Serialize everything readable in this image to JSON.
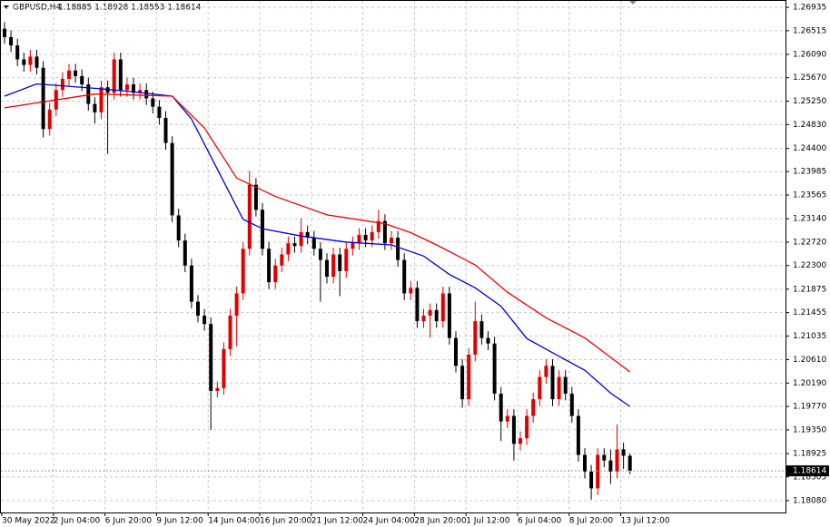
{
  "chart_data": {
    "type": "candlestick",
    "title": "GBPUSD,H4",
    "header_values": "1.18885 1.18928 1.18553 1.18614",
    "categories": [
      "30 May 2022",
      null,
      null,
      null,
      null,
      null,
      null,
      null,
      "2 Jun 04:00",
      null,
      null,
      null,
      null,
      null,
      null,
      null,
      "6 Jun 20:00",
      null,
      null,
      null,
      null,
      null,
      null,
      null,
      "9 Jun 12:00",
      null,
      null,
      null,
      null,
      null,
      null,
      null,
      "14 Jun 04:00",
      null,
      null,
      null,
      null,
      null,
      null,
      null,
      "16 Jun 20:00",
      null,
      null,
      null,
      null,
      null,
      null,
      null,
      "21 Jun 12:00",
      null,
      null,
      null,
      null,
      null,
      null,
      null,
      "24 Jun 04:00",
      null,
      null,
      null,
      null,
      null,
      null,
      null,
      "28 Jun 20:00",
      null,
      null,
      null,
      null,
      null,
      null,
      null,
      "1 Jul 12:00",
      null,
      null,
      null,
      null,
      null,
      null,
      null,
      "6 Jul 04:00",
      null,
      null,
      null,
      null,
      null,
      null,
      null,
      "8 Jul 20:00",
      null,
      null,
      null,
      null,
      null,
      null,
      null,
      "13 Jul 12:00",
      null
    ],
    "open": [
      1.2655,
      1.264,
      1.2625,
      1.26,
      1.259,
      1.2605,
      1.2585,
      1.2475,
      1.251,
      1.2545,
      1.2565,
      1.258,
      1.257,
      1.2555,
      1.252,
      1.2505,
      1.255,
      1.254,
      1.26,
      1.2545,
      1.2555,
      1.254,
      1.2545,
      1.253,
      1.2515,
      1.2495,
      1.245,
      1.232,
      1.2275,
      1.223,
      1.2165,
      1.214,
      1.2125,
      1.2005,
      1.201,
      1.208,
      1.214,
      1.218,
      1.226,
      1.2375,
      1.233,
      1.226,
      1.22,
      1.223,
      1.225,
      1.227,
      1.2265,
      1.229,
      1.228,
      1.226,
      1.224,
      1.221,
      1.225,
      1.222,
      1.226,
      1.227,
      1.2285,
      1.2275,
      1.229,
      1.231,
      1.227,
      1.228,
      1.224,
      1.218,
      1.219,
      1.213,
      1.214,
      1.215,
      1.213,
      1.218,
      1.21,
      1.205,
      1.199,
      1.207,
      1.213,
      1.21,
      1.209,
      1.2,
      1.195,
      1.196,
      1.191,
      1.192,
      1.196,
      1.199,
      1.203,
      1.205,
      1.199,
      1.203,
      1.2,
      1.196,
      1.189,
      1.186,
      1.183,
      1.189,
      1.188,
      1.186,
      1.19,
      1.18885
    ],
    "high": [
      1.2667,
      1.2652,
      1.2637,
      1.2612,
      1.2617,
      1.2617,
      1.2597,
      1.2522,
      1.2557,
      1.2577,
      1.2592,
      1.2592,
      1.2582,
      1.2567,
      1.2532,
      1.2562,
      1.2562,
      1.2612,
      1.2612,
      1.2567,
      1.2567,
      1.2557,
      1.2557,
      1.2542,
      1.2527,
      1.2507,
      1.2462,
      1.2332,
      1.2287,
      1.2242,
      1.2177,
      1.2152,
      1.2137,
      1.2022,
      1.2092,
      1.2152,
      1.2192,
      1.2272,
      1.24,
      1.2387,
      1.2342,
      1.2272,
      1.2242,
      1.2262,
      1.2282,
      1.2282,
      1.2315,
      1.2302,
      1.2292,
      1.2272,
      1.2252,
      1.2262,
      1.2262,
      1.2272,
      1.2282,
      1.2297,
      1.2297,
      1.2302,
      1.233,
      1.2322,
      1.2292,
      1.2292,
      1.2252,
      1.2202,
      1.2202,
      1.2152,
      1.2162,
      1.2162,
      1.2192,
      1.2192,
      1.2112,
      1.2062,
      1.2082,
      1.2165,
      1.2142,
      1.2112,
      1.2102,
      1.2012,
      1.1972,
      1.1972,
      1.1932,
      1.1972,
      1.2002,
      1.2042,
      1.2062,
      1.2062,
      1.2042,
      1.2042,
      1.2012,
      1.1972,
      1.1902,
      1.1872,
      1.1902,
      1.1902,
      1.19,
      1.1945,
      1.1912,
      1.18928
    ],
    "low": [
      1.2628,
      1.2613,
      1.2588,
      1.2578,
      1.2578,
      1.2573,
      1.246,
      1.2463,
      1.2498,
      1.2533,
      1.2553,
      1.2558,
      1.2543,
      1.2508,
      1.2485,
      1.2493,
      1.243,
      1.2528,
      1.2533,
      1.2533,
      1.2528,
      1.2528,
      1.2518,
      1.2503,
      1.2483,
      1.2438,
      1.2308,
      1.2263,
      1.2218,
      1.2153,
      1.2128,
      1.2113,
      1.1935,
      1.1993,
      1.1998,
      1.2068,
      1.2085,
      1.2168,
      1.2248,
      1.2318,
      1.2248,
      1.2188,
      1.2188,
      1.2218,
      1.2238,
      1.2253,
      1.2253,
      1.2268,
      1.2248,
      1.2165,
      1.2198,
      1.2198,
      1.2175,
      1.2208,
      1.2248,
      1.2258,
      1.2263,
      1.2263,
      1.2278,
      1.2258,
      1.2258,
      1.2228,
      1.2168,
      1.2168,
      1.2118,
      1.2118,
      1.21,
      1.2118,
      1.2118,
      1.2088,
      1.2038,
      1.1975,
      1.1978,
      1.2058,
      1.2088,
      1.2078,
      1.1988,
      1.1915,
      1.1938,
      1.188,
      1.1898,
      1.1908,
      1.1948,
      1.1978,
      1.2018,
      1.1978,
      1.1978,
      1.1988,
      1.1948,
      1.1878,
      1.1848,
      1.181,
      1.1818,
      1.1868,
      1.1838,
      1.1848,
      1.1865,
      1.18553
    ],
    "close": [
      1.264,
      1.2625,
      1.26,
      1.259,
      1.2605,
      1.2585,
      1.2475,
      1.251,
      1.2545,
      1.2565,
      1.258,
      1.257,
      1.2555,
      1.252,
      1.2505,
      1.255,
      1.254,
      1.26,
      1.2545,
      1.2555,
      1.254,
      1.2545,
      1.253,
      1.2515,
      1.2495,
      1.245,
      1.232,
      1.2275,
      1.223,
      1.2165,
      1.214,
      1.2125,
      1.2005,
      1.201,
      1.208,
      1.214,
      1.218,
      1.226,
      1.2375,
      1.233,
      1.226,
      1.22,
      1.223,
      1.225,
      1.227,
      1.2265,
      1.229,
      1.228,
      1.226,
      1.224,
      1.221,
      1.225,
      1.222,
      1.226,
      1.227,
      1.2285,
      1.2275,
      1.229,
      1.231,
      1.227,
      1.228,
      1.224,
      1.218,
      1.219,
      1.213,
      1.214,
      1.215,
      1.213,
      1.218,
      1.21,
      1.205,
      1.199,
      1.207,
      1.213,
      1.21,
      1.209,
      1.2,
      1.195,
      1.196,
      1.191,
      1.192,
      1.196,
      1.199,
      1.203,
      1.205,
      1.199,
      1.203,
      1.2,
      1.196,
      1.189,
      1.186,
      1.183,
      1.189,
      1.188,
      1.186,
      1.19,
      1.18885,
      1.18614
    ],
    "up_color": "#e00000",
    "down_color": "#000000",
    "lines": [
      {
        "color": "#0000cc",
        "x": [
          0,
          5,
          14,
          19,
          26,
          29,
          33,
          37,
          40,
          46,
          53,
          60,
          65,
          69,
          73,
          77,
          81,
          86,
          90,
          94,
          97
        ],
        "values": [
          1.2534,
          1.2556,
          1.2548,
          1.2543,
          1.2534,
          1.2493,
          1.2403,
          1.2313,
          1.2296,
          1.2283,
          1.2272,
          1.2267,
          1.2247,
          1.2214,
          1.219,
          1.2157,
          1.2099,
          1.2067,
          1.2042,
          1.2001,
          1.1977
        ]
      },
      {
        "color": "#ee0000",
        "x": [
          0,
          14,
          26,
          31,
          36,
          42,
          50,
          59,
          63,
          67,
          73,
          78,
          84,
          90,
          97
        ],
        "values": [
          1.2513,
          1.2538,
          1.2534,
          1.2477,
          1.2387,
          1.2354,
          1.2321,
          1.2305,
          1.2289,
          1.2267,
          1.2231,
          1.2182,
          1.2136,
          1.21,
          1.2039
        ]
      }
    ],
    "last_price": 1.18614,
    "ylim": [
      1.17867,
      1.27066
    ],
    "yticks": [
      1.26935,
      1.26515,
      {
        "value": 1.2609,
        "label": "1.26090"
      },
      {
        "value": 1.2567,
        "label": "1.25670"
      },
      {
        "value": 1.2525,
        "label": "1.25250"
      },
      {
        "value": 1.2483,
        "label": "1.24830"
      },
      {
        "value": 1.244,
        "label": "1.24400"
      },
      1.23985,
      1.23565,
      {
        "value": 1.2314,
        "label": "1.23140"
      },
      {
        "value": 1.2272,
        "label": "1.22720"
      },
      {
        "value": 1.223,
        "label": "1.22300"
      },
      1.21875,
      1.21455,
      1.21035,
      {
        "value": 1.2061,
        "label": "1.20610"
      },
      {
        "value": 1.2019,
        "label": "1.20190"
      },
      {
        "value": 1.1977,
        "label": "1.19770"
      },
      {
        "value": 1.1935,
        "label": "1.19350"
      },
      1.18925,
      1.18505,
      {
        "value": 1.1808,
        "label": "1.18080"
      }
    ],
    "grid": true
  }
}
